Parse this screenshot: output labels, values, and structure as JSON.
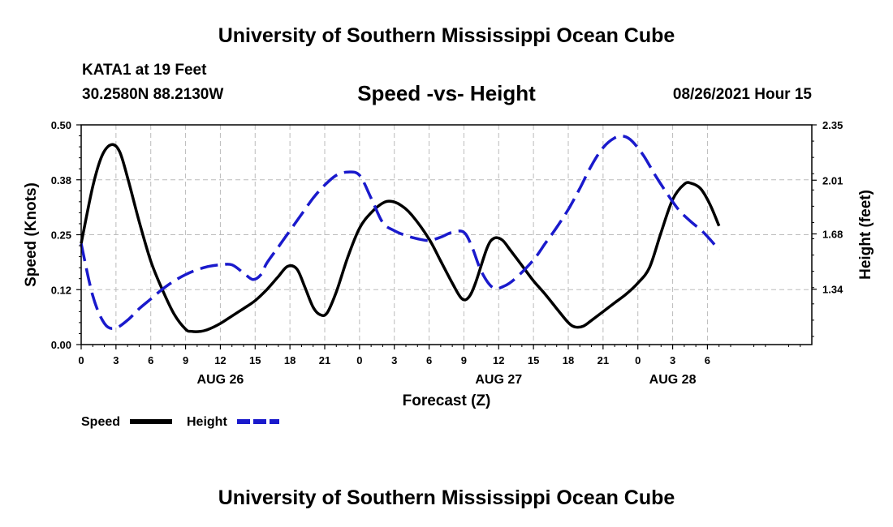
{
  "header": {
    "title": "University of Southern Mississippi Ocean Cube",
    "station": "KATA1 at 19 Feet",
    "coords": "30.2580N  88.2130W",
    "chart_title": "Speed -vs- Height",
    "datetime": "08/26/2021 Hour 15"
  },
  "footer": {
    "title": "University of Southern Mississippi Ocean Cube"
  },
  "colors": {
    "speed": "#000000",
    "height": "#1a1acc",
    "grid": "#bbbbbb"
  },
  "chart_data": {
    "type": "line",
    "title": "Speed -vs- Height",
    "xlabel": "Forecast (Z)",
    "ylabel": "Speed (Knots)",
    "y2label": "Height (feet)",
    "xlim": [
      0,
      63
    ],
    "ylim": [
      0,
      0.5
    ],
    "y2lim": [
      1.0,
      2.35
    ],
    "grid": true,
    "x_ticks": [
      {
        "x": 0,
        "label": "0"
      },
      {
        "x": 3,
        "label": "3"
      },
      {
        "x": 6,
        "label": "6"
      },
      {
        "x": 9,
        "label": "9"
      },
      {
        "x": 12,
        "label": "12"
      },
      {
        "x": 15,
        "label": "15"
      },
      {
        "x": 18,
        "label": "18"
      },
      {
        "x": 21,
        "label": "21"
      },
      {
        "x": 24,
        "label": "0"
      },
      {
        "x": 27,
        "label": "3"
      },
      {
        "x": 30,
        "label": "6"
      },
      {
        "x": 33,
        "label": "9"
      },
      {
        "x": 36,
        "label": "12"
      },
      {
        "x": 39,
        "label": "15"
      },
      {
        "x": 42,
        "label": "18"
      },
      {
        "x": 45,
        "label": "21"
      },
      {
        "x": 48,
        "label": "0"
      },
      {
        "x": 51,
        "label": "3"
      },
      {
        "x": 54,
        "label": "6"
      }
    ],
    "y_ticks": [
      {
        "v": 0.0,
        "label": "0.00"
      },
      {
        "v": 0.125,
        "label": "0.12"
      },
      {
        "v": 0.25,
        "label": "0.25"
      },
      {
        "v": 0.375,
        "label": "0.38"
      },
      {
        "v": 0.5,
        "label": "0.50"
      }
    ],
    "y2_ticks": [
      {
        "v": 1.34,
        "label": "1.34"
      },
      {
        "v": 1.68,
        "label": "1.68"
      },
      {
        "v": 2.01,
        "label": "2.01"
      },
      {
        "v": 2.35,
        "label": "2.35"
      }
    ],
    "date_labels": [
      {
        "x": 12,
        "label": "AUG 26"
      },
      {
        "x": 36,
        "label": "AUG 27"
      },
      {
        "x": 51,
        "label": "AUG 28"
      }
    ],
    "legend": [
      {
        "name": "Speed",
        "series": "speed"
      },
      {
        "name": "Height",
        "series": "height"
      }
    ],
    "series": [
      {
        "name": "Speed",
        "key": "speed",
        "axis": "left",
        "style": "solid",
        "points": [
          [
            0,
            0.23
          ],
          [
            1,
            0.36
          ],
          [
            1.8,
            0.43
          ],
          [
            2.6,
            0.455
          ],
          [
            3.3,
            0.44
          ],
          [
            4,
            0.38
          ],
          [
            5,
            0.28
          ],
          [
            6,
            0.19
          ],
          [
            7,
            0.125
          ],
          [
            8,
            0.07
          ],
          [
            9,
            0.035
          ],
          [
            9.5,
            0.03
          ],
          [
            10.3,
            0.03
          ],
          [
            11,
            0.035
          ],
          [
            12,
            0.048
          ],
          [
            13,
            0.065
          ],
          [
            14,
            0.082
          ],
          [
            15,
            0.1
          ],
          [
            16,
            0.125
          ],
          [
            17,
            0.155
          ],
          [
            17.8,
            0.178
          ],
          [
            18.6,
            0.172
          ],
          [
            19.3,
            0.13
          ],
          [
            20,
            0.085
          ],
          [
            20.6,
            0.068
          ],
          [
            21.2,
            0.072
          ],
          [
            22,
            0.12
          ],
          [
            23,
            0.2
          ],
          [
            24,
            0.265
          ],
          [
            25,
            0.3
          ],
          [
            26,
            0.322
          ],
          [
            26.7,
            0.326
          ],
          [
            27.5,
            0.318
          ],
          [
            28.5,
            0.295
          ],
          [
            30,
            0.24
          ],
          [
            31,
            0.19
          ],
          [
            32,
            0.14
          ],
          [
            32.8,
            0.105
          ],
          [
            33.4,
            0.107
          ],
          [
            34,
            0.14
          ],
          [
            35,
            0.22
          ],
          [
            35.6,
            0.242
          ],
          [
            36.3,
            0.238
          ],
          [
            37,
            0.215
          ],
          [
            38,
            0.18
          ],
          [
            39,
            0.145
          ],
          [
            40,
            0.115
          ],
          [
            41,
            0.082
          ],
          [
            42,
            0.05
          ],
          [
            42.6,
            0.04
          ],
          [
            43.3,
            0.042
          ],
          [
            44,
            0.055
          ],
          [
            45,
            0.075
          ],
          [
            46,
            0.095
          ],
          [
            47,
            0.115
          ],
          [
            48,
            0.14
          ],
          [
            49,
            0.175
          ],
          [
            50,
            0.255
          ],
          [
            51,
            0.33
          ],
          [
            52,
            0.365
          ],
          [
            52.6,
            0.367
          ],
          [
            53.4,
            0.355
          ],
          [
            54.2,
            0.32
          ],
          [
            55,
            0.27
          ]
        ]
      },
      {
        "name": "Height",
        "key": "height",
        "axis": "right",
        "style": "dashed",
        "points": [
          [
            0,
            1.62
          ],
          [
            1,
            1.3
          ],
          [
            2,
            1.13
          ],
          [
            2.9,
            1.1
          ],
          [
            4,
            1.15
          ],
          [
            5,
            1.22
          ],
          [
            6,
            1.28
          ],
          [
            7,
            1.34
          ],
          [
            8,
            1.39
          ],
          [
            9,
            1.43
          ],
          [
            10,
            1.46
          ],
          [
            11,
            1.48
          ],
          [
            12,
            1.49
          ],
          [
            13,
            1.49
          ],
          [
            14,
            1.44
          ],
          [
            14.8,
            1.4
          ],
          [
            15.5,
            1.43
          ],
          [
            16,
            1.5
          ],
          [
            17,
            1.6
          ],
          [
            18,
            1.7
          ],
          [
            19,
            1.8
          ],
          [
            20,
            1.9
          ],
          [
            21,
            1.98
          ],
          [
            22,
            2.04
          ],
          [
            23,
            2.06
          ],
          [
            24,
            2.04
          ],
          [
            25,
            1.9
          ],
          [
            26,
            1.75
          ],
          [
            27,
            1.7
          ],
          [
            28,
            1.67
          ],
          [
            29,
            1.65
          ],
          [
            30,
            1.64
          ],
          [
            31,
            1.66
          ],
          [
            32,
            1.69
          ],
          [
            33,
            1.69
          ],
          [
            33.7,
            1.6
          ],
          [
            34.5,
            1.45
          ],
          [
            35.5,
            1.35
          ],
          [
            36.5,
            1.36
          ],
          [
            37.5,
            1.41
          ],
          [
            39,
            1.52
          ],
          [
            40,
            1.62
          ],
          [
            41,
            1.72
          ],
          [
            42,
            1.83
          ],
          [
            43,
            1.96
          ],
          [
            44,
            2.1
          ],
          [
            45,
            2.21
          ],
          [
            46,
            2.27
          ],
          [
            46.8,
            2.28
          ],
          [
            47.5,
            2.25
          ],
          [
            48.5,
            2.16
          ],
          [
            49.5,
            2.04
          ],
          [
            50.5,
            1.93
          ],
          [
            51.5,
            1.83
          ],
          [
            52.5,
            1.76
          ],
          [
            53.5,
            1.7
          ],
          [
            54.3,
            1.64
          ],
          [
            55,
            1.58
          ]
        ]
      }
    ]
  }
}
